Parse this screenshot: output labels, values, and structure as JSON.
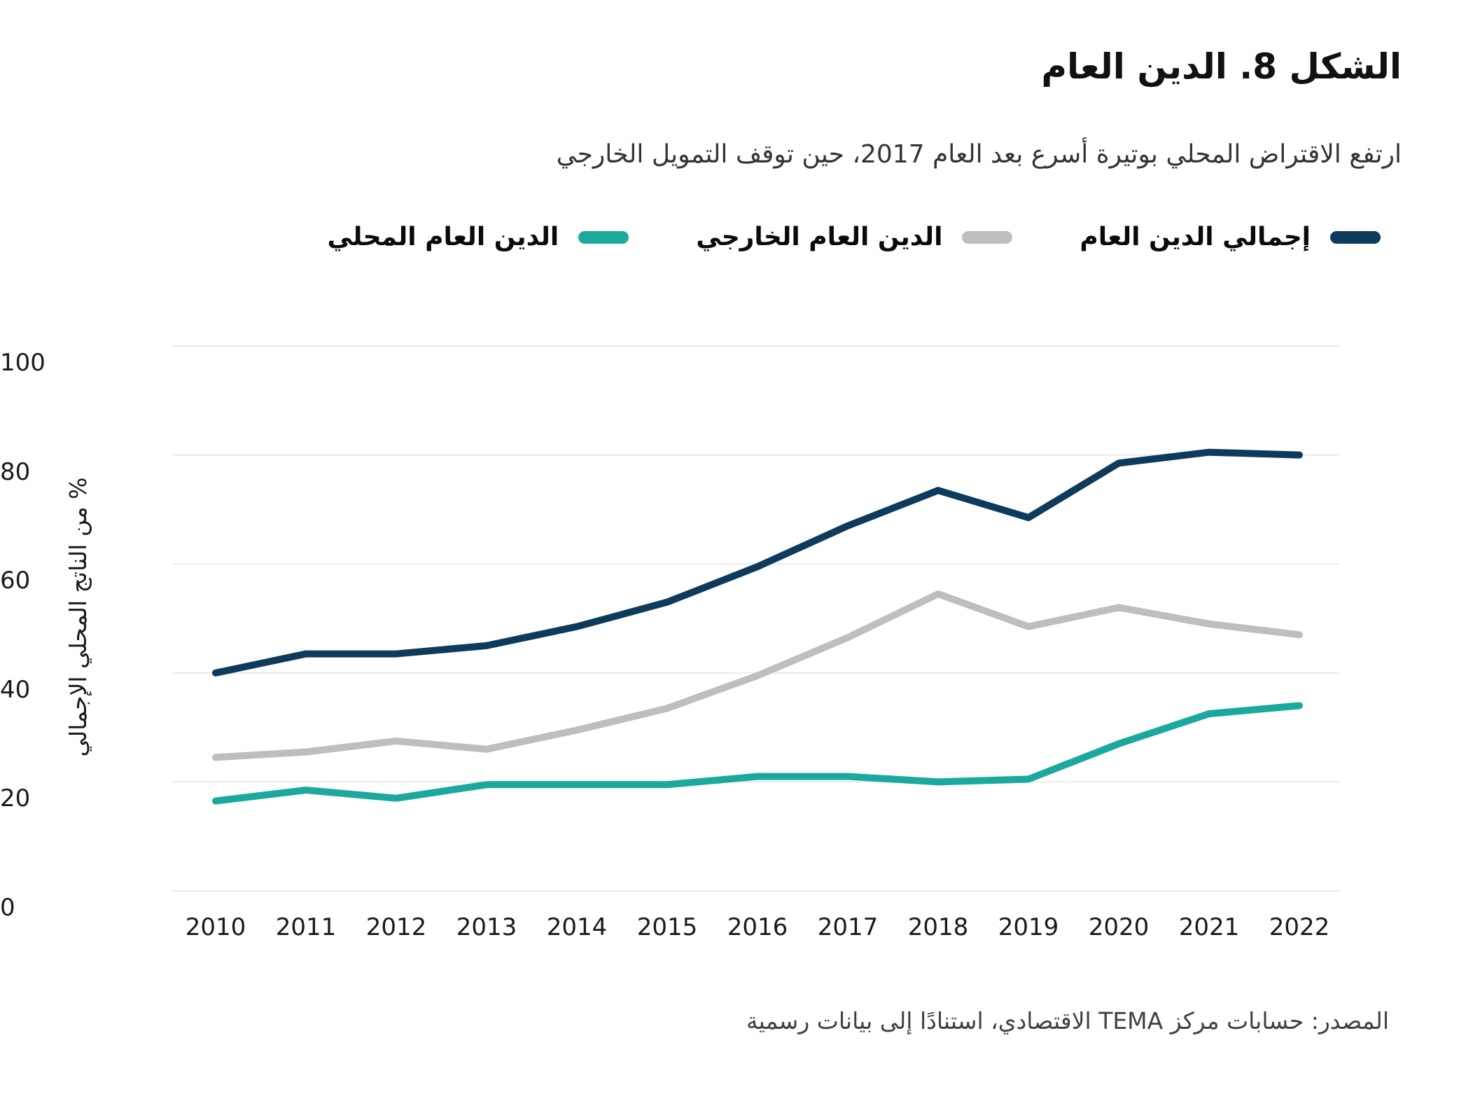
{
  "title": "الشكل 8. الدين العام",
  "subtitle": "ارتفع الاقتراض المحلي بوتيرة أسرع بعد العام 2017، حين توقف التمويل الخارجي",
  "source": "المصدر: حسابات مركز TEMA الاقتصادي، استنادًا إلى بيانات رسمية",
  "colors": {
    "total": "#0e3a5c",
    "external": "#bcbec0",
    "domestic": "#1aa99c",
    "grid": "#ebebeb",
    "text": "#1a1a1a"
  },
  "chart_data": {
    "type": "line",
    "x": [
      "2010",
      "2011",
      "2012",
      "2013",
      "2014",
      "2015",
      "2016",
      "2017",
      "2018",
      "2019",
      "2020",
      "2021",
      "2022"
    ],
    "series": [
      {
        "key": "total",
        "name": "إجمالي الدين العام",
        "values": [
          40,
          43.5,
          43.5,
          45,
          48.5,
          53,
          59.5,
          67,
          73.5,
          68.5,
          78.5,
          80.5,
          80
        ]
      },
      {
        "key": "external",
        "name": "الدين العام الخارجي",
        "values": [
          24.5,
          25.5,
          27.5,
          26,
          29.5,
          33.5,
          39.5,
          46.5,
          54.5,
          48.5,
          52,
          49,
          47
        ]
      },
      {
        "key": "domestic",
        "name": "الدين العام المحلي",
        "values": [
          16.5,
          18.5,
          17,
          19.5,
          19.5,
          19.5,
          21,
          21,
          20,
          20.5,
          27,
          32.5,
          34
        ]
      }
    ],
    "ylabel": "% من الناتج المحلي الإجمالي",
    "ylim": [
      0,
      100
    ],
    "y_ticks": [
      0,
      20,
      40,
      60,
      80,
      100
    ],
    "grid": true,
    "legend_position": "top"
  }
}
